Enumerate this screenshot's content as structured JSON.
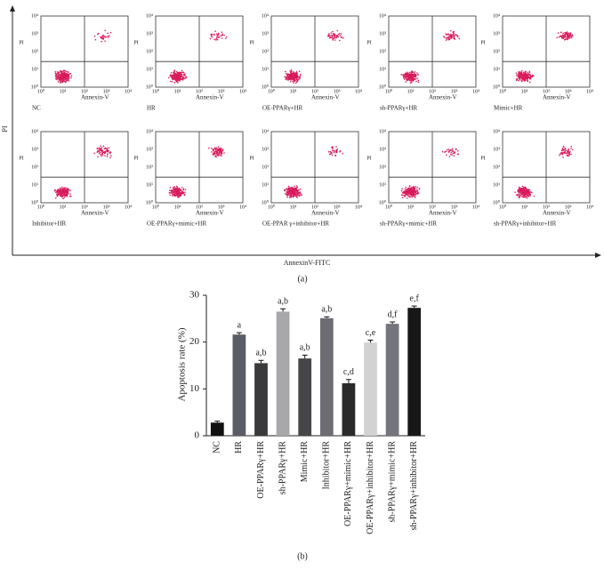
{
  "panel_a": {
    "y_label": "PI",
    "x_label": "AnnexinV-FITC",
    "caption": "(a)",
    "ticks": [
      "10⁰",
      "10¹",
      "10²",
      "10³",
      "10⁴"
    ],
    "plots": [
      {
        "title": "NC",
        "x_label": "Annexin-V",
        "y_label": "PI"
      },
      {
        "title": "HR",
        "x_label": "Annexin-V",
        "y_label": "PI"
      },
      {
        "title": "OE-PPARγ+HR",
        "x_label": "Annexin-V",
        "y_label": "PI"
      },
      {
        "title": "sh-PPARγ+HR",
        "x_label": "Annexin-V",
        "y_label": "PI"
      },
      {
        "title": "Mimic+HR",
        "x_label": "Annexin-V",
        "y_label": "PI"
      },
      {
        "title": "Inhibitor+HR",
        "x_label": "Annexin-V",
        "y_label": "PI"
      },
      {
        "title": "OE-PPARγ+mimic+HR",
        "x_label": "Annexin-V",
        "y_label": "PI"
      },
      {
        "title": "OE-PPAR γ+inhibitor+HR",
        "x_label": "Annexin-V",
        "y_label": "PI"
      },
      {
        "title": "sh-PPARγ+mimic+HR",
        "x_label": "Annexin-V",
        "y_label": "PI"
      },
      {
        "title": "sh-PPARγ+inhibitor+HR",
        "x_label": "Annexin-V",
        "y_label": "PI"
      }
    ]
  },
  "chart_data": {
    "type": "bar",
    "y_label": "Apoptosis rate (%)",
    "caption": "(b)",
    "categories": [
      "NC",
      "HR",
      "OE-PPARγ+HR",
      "sh-PPARγ+HR",
      "Mimic+HR",
      "Inhibitor+HR",
      "OE-PPARγ+mimic+HR",
      "OE-PPARγ+inhibitor+HR",
      "sh-PPARγ+mimic+HR",
      "sh-PPARγ+inhibitor+HR"
    ],
    "values": [
      2.8,
      21.6,
      15.5,
      26.5,
      16.5,
      25.1,
      11.2,
      19.9,
      23.9,
      27.3
    ],
    "errors": [
      0.3,
      0.4,
      0.6,
      0.6,
      0.7,
      0.3,
      0.8,
      0.5,
      0.4,
      0.4
    ],
    "annotations": [
      null,
      "a",
      "a,b",
      "a,b",
      "a,b",
      "a,b",
      "c,d",
      "c,e",
      "d,f",
      "e,f"
    ],
    "colors": [
      "#111111",
      "#5b5d66",
      "#3a3a3c",
      "#a8a8aa",
      "#464648",
      "#6c6c72",
      "#2a2a2a",
      "#d2d2d2",
      "#74747c",
      "#181818"
    ],
    "ylim": [
      0,
      30
    ],
    "yticks": [
      0,
      10,
      20,
      30
    ],
    "grid": false
  }
}
